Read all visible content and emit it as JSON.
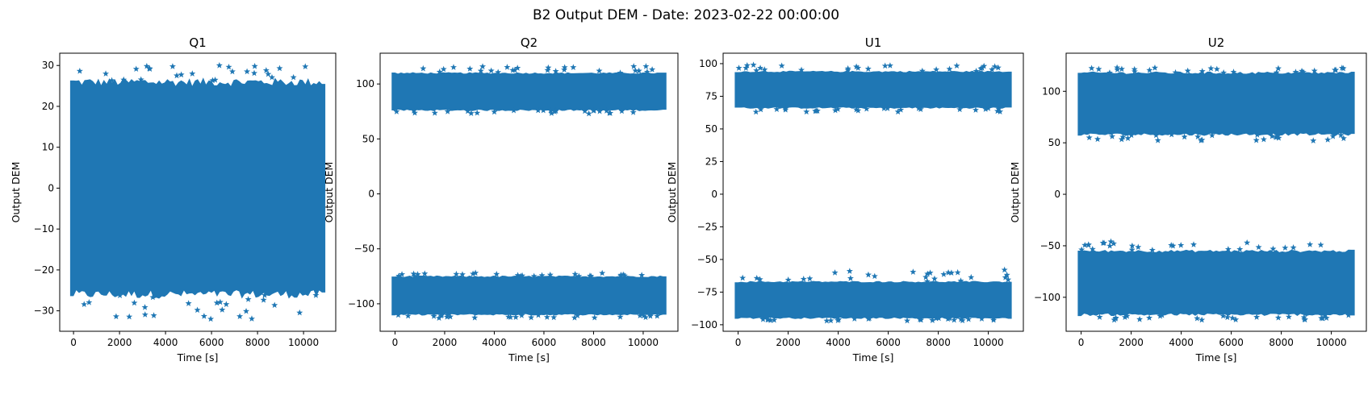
{
  "figure": {
    "suptitle": "B2 Output DEM - Date: 2023-02-22 00:00:00"
  },
  "chart_data": [
    {
      "type": "scatter",
      "marker": "star",
      "color": "#1f77b4",
      "title": "Q1",
      "xlabel": "Time [s]",
      "ylabel": "Output DEM",
      "xlim": [
        -600,
        11400
      ],
      "ylim": [
        -35,
        33
      ],
      "xticks": [
        0,
        2000,
        4000,
        6000,
        8000,
        10000
      ],
      "yticks": [
        -30,
        -20,
        -10,
        0,
        10,
        20,
        30
      ],
      "grid": false,
      "x_range": [
        0,
        10800
      ],
      "bands": [
        {
          "y_min": -26,
          "y_max": 26,
          "upper_outlier_max": 30,
          "lower_outlier_min": -32
        }
      ]
    },
    {
      "type": "scatter",
      "marker": "star",
      "color": "#1f77b4",
      "title": "Q2",
      "xlabel": "Time [s]",
      "ylabel": "Output DEM",
      "xlim": [
        -600,
        11400
      ],
      "ylim": [
        -125,
        128
      ],
      "xticks": [
        0,
        2000,
        4000,
        6000,
        8000,
        10000
      ],
      "yticks": [
        -100,
        -50,
        0,
        50,
        100
      ],
      "grid": false,
      "x_range": [
        0,
        10800
      ],
      "bands": [
        {
          "y_min": 76,
          "y_max": 110,
          "upper_outlier_max": 116,
          "lower_outlier_min": 73
        },
        {
          "y_min": -110,
          "y_max": -75,
          "upper_outlier_max": -72,
          "lower_outlier_min": -113
        }
      ]
    },
    {
      "type": "scatter",
      "marker": "star",
      "color": "#1f77b4",
      "title": "U1",
      "xlabel": "Time [s]",
      "ylabel": "Output DEM",
      "xlim": [
        -600,
        11400
      ],
      "ylim": [
        -105,
        108
      ],
      "xticks": [
        0,
        2000,
        4000,
        6000,
        8000,
        10000
      ],
      "yticks": [
        -100,
        -75,
        -50,
        -25,
        0,
        25,
        50,
        75,
        100
      ],
      "grid": false,
      "x_range": [
        0,
        10800
      ],
      "bands": [
        {
          "y_min": 66,
          "y_max": 94,
          "upper_outlier_max": 99,
          "lower_outlier_min": 63
        },
        {
          "y_min": -95,
          "y_max": -67,
          "upper_outlier_max": -58,
          "lower_outlier_min": -97
        }
      ]
    },
    {
      "type": "scatter",
      "marker": "star",
      "color": "#1f77b4",
      "title": "U2",
      "xlabel": "Time [s]",
      "ylabel": "Output DEM",
      "xlim": [
        -600,
        11400
      ],
      "ylim": [
        -133,
        137
      ],
      "xticks": [
        0,
        2000,
        4000,
        6000,
        8000,
        10000
      ],
      "yticks": [
        -100,
        -50,
        0,
        50,
        100
      ],
      "grid": false,
      "x_range": [
        0,
        10800
      ],
      "bands": [
        {
          "y_min": 58,
          "y_max": 118,
          "upper_outlier_max": 123,
          "lower_outlier_min": 52
        },
        {
          "y_min": -117,
          "y_max": -55,
          "upper_outlier_max": -46,
          "lower_outlier_min": -122
        }
      ]
    }
  ]
}
